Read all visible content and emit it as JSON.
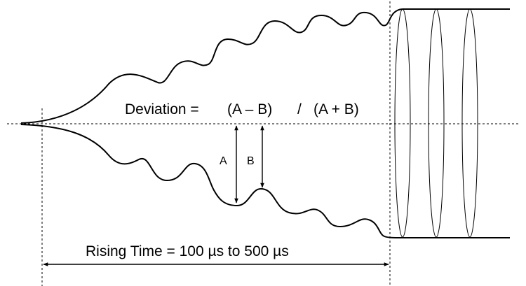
{
  "diagram": {
    "deviation_formula": {
      "lead": "Deviation =",
      "numerator": "(A – B)",
      "divider": "/",
      "denominator": "(A + B)"
    },
    "label_a": "A",
    "label_b": "B",
    "rising_time_label": "Rising Time = 100 µs to 500 µs",
    "colors": {
      "stroke": "#000000",
      "background": "#ffffff"
    }
  }
}
